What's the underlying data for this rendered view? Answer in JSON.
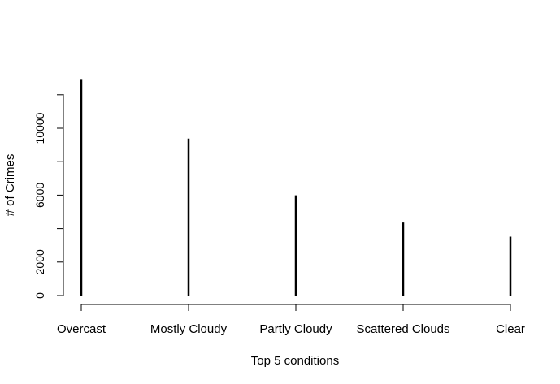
{
  "chart_data": {
    "type": "bar",
    "style": "histogram-lines",
    "categories": [
      "Overcast",
      "Mostly Cloudy",
      "Partly Cloudy",
      "Scattered Clouds",
      "Clear"
    ],
    "values": [
      12940,
      9380,
      5990,
      4360,
      3520
    ],
    "xlabel": "Top 5 conditions",
    "ylabel": "# of Crimes",
    "ylim": [
      0,
      12940
    ],
    "yticks": [
      0,
      2000,
      4000,
      6000,
      8000,
      10000,
      12000
    ],
    "ytick_labels": [
      "0",
      "2000",
      "",
      "6000",
      "",
      "10000",
      ""
    ],
    "grid": false,
    "colors": {
      "line": "#000000",
      "background": "#ffffff"
    }
  }
}
